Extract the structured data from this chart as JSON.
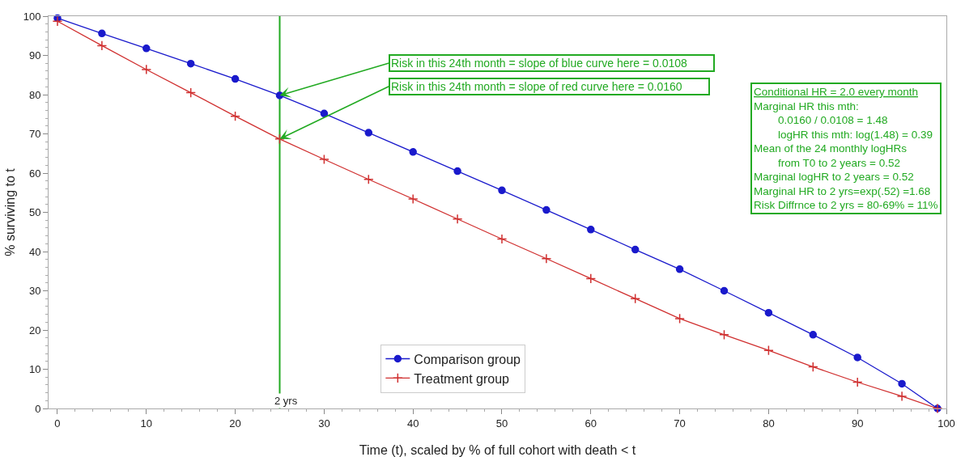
{
  "chart_data": {
    "type": "line",
    "xlabel": "Time (t), scaled by % of full cohort with death < t",
    "ylabel": "% surviving to t",
    "x": [
      0,
      5,
      10,
      15,
      20,
      25,
      30,
      35,
      40,
      45,
      50,
      55,
      60,
      65,
      70,
      75,
      80,
      85,
      90,
      95,
      99
    ],
    "series": [
      {
        "name": "Comparison group",
        "color": "#1a1acc",
        "marker": "circle",
        "values": [
          99.5,
          95.6,
          91.8,
          87.9,
          84,
          79.8,
          75.2,
          70.3,
          65.4,
          60.5,
          55.6,
          50.6,
          45.6,
          40.5,
          35.5,
          30,
          24.4,
          18.8,
          13,
          6.3,
          0
        ]
      },
      {
        "name": "Treatment group",
        "color": "#d03030",
        "marker": "cross",
        "values": [
          98.7,
          92.5,
          86.4,
          80.5,
          74.5,
          68.7,
          63.5,
          58.4,
          53.4,
          48.3,
          43.2,
          38.2,
          33.1,
          28,
          22.9,
          18.8,
          14.8,
          10.6,
          6.7,
          3.1,
          0
        ]
      }
    ],
    "xlim": [
      -1,
      100
    ],
    "xticks": [
      0,
      10,
      20,
      30,
      40,
      50,
      60,
      70,
      80,
      90,
      100
    ],
    "ylim": [
      0,
      100
    ],
    "yticks": [
      0,
      10,
      20,
      30,
      40,
      50,
      60,
      70,
      80,
      90,
      100
    ],
    "grid": false,
    "legend": "bottom",
    "line_style": "solid",
    "ref_lines": [
      {
        "axis": "x",
        "value": 25,
        "label": "2 yrs",
        "color": "#22aa22"
      }
    ],
    "annotations": [
      {
        "text": "Risk in this 24th month = slope of blue curve here = 0.0108",
        "x": 25,
        "y": 79.8
      },
      {
        "text": "Risk in this 24th month = slope of red curve here = 0.0160",
        "x": 25,
        "y": 68.7
      },
      "Conditional HR = 2.0 every month\nMarginal HR this mth:\n    0.0160 / 0.0108 = 1.48\n    logHR this mth: log(1.48) = 0.39\nMean of the 24 monthly logHRs\n    from T0 to 2 years = 0.52\nMarginal logHR to 2 years = 0.52\nMarginal HR to 2 yrs=exp(.52) =1.68\nRisk Diffrnce to 2 yrs = 80-69% = 11%"
    ]
  }
}
